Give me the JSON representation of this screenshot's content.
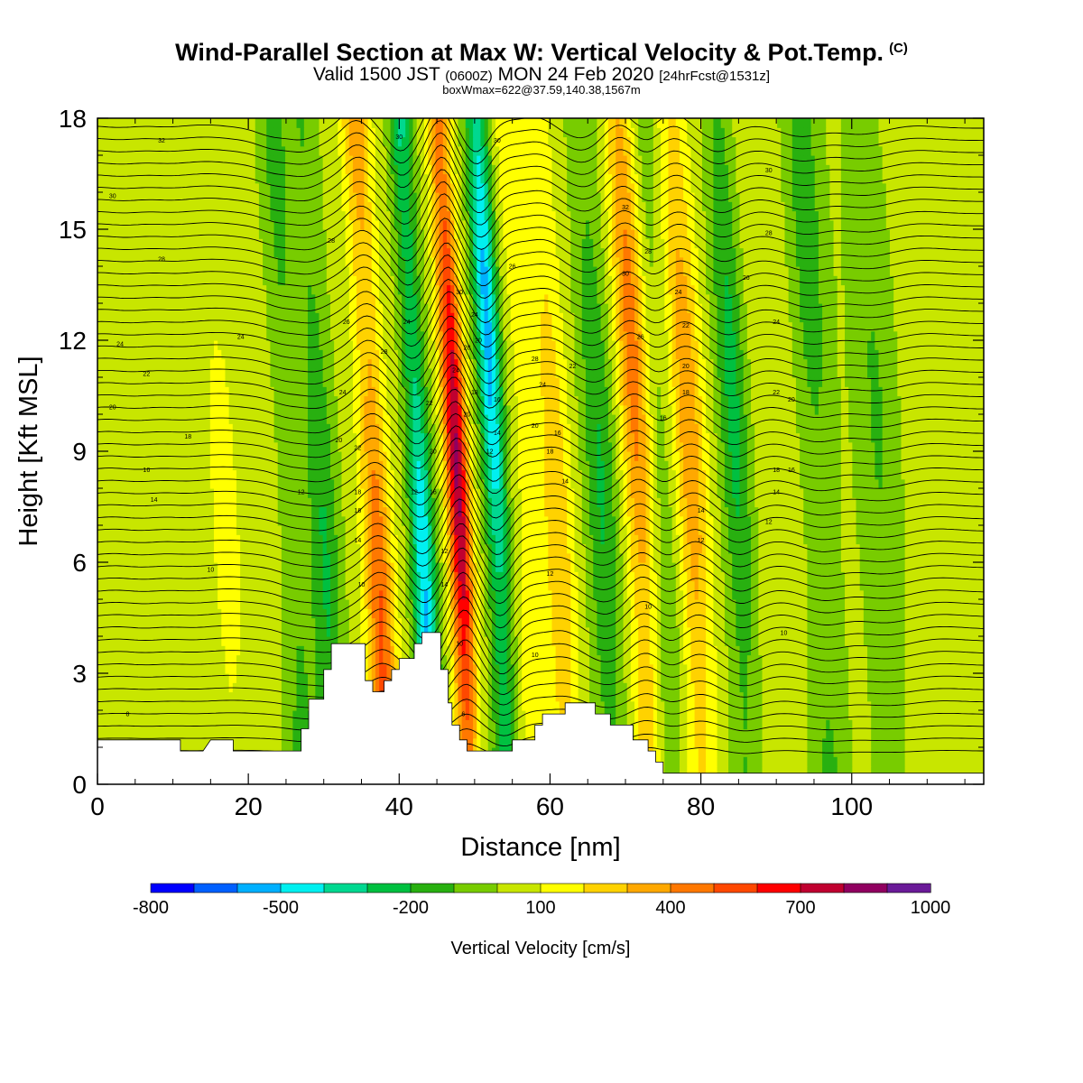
{
  "header": {
    "title": "Wind-Parallel Section at Max W: Vertical Velocity & Pot.Temp.",
    "copyright": "(C)",
    "valid_prefix": "Valid 1500 JST",
    "valid_utc": "(0600Z)",
    "valid_date": "MON 24 Feb 2020",
    "forecast": "[24hrFcst@1531z]",
    "box_info": "boxWmax=622@37.59,140.38,1567m"
  },
  "chart_data": {
    "type": "heatmap",
    "xlabel": "Distance [nm]",
    "ylabel": "Height [Kft MSL]",
    "xlim": [
      0,
      117.5
    ],
    "ylim": [
      0,
      18
    ],
    "x_ticks": [
      0,
      20,
      40,
      60,
      80,
      100
    ],
    "y_ticks": [
      0,
      3,
      6,
      9,
      12,
      15,
      18
    ],
    "colorbar": {
      "title": "Vertical Velocity [cm/s]",
      "levels": [
        -800,
        -700,
        -600,
        -500,
        -400,
        -300,
        -200,
        -100,
        0,
        100,
        200,
        300,
        400,
        500,
        600,
        700,
        800,
        900,
        1000
      ],
      "labels": [
        "-800",
        "-500",
        "-200",
        "100",
        "400",
        "700",
        "1000"
      ],
      "label_values": [
        -800,
        -500,
        -200,
        100,
        400,
        700,
        1000
      ],
      "colors": [
        "#0000ff",
        "#0060ff",
        "#00b0ff",
        "#00f0f0",
        "#00d890",
        "#00c040",
        "#28b010",
        "#78cc00",
        "#c8e600",
        "#ffff00",
        "#ffd200",
        "#ffa800",
        "#ff7800",
        "#ff4800",
        "#ff0000",
        "#c00030",
        "#900060",
        "#6a1a98"
      ]
    },
    "vertical_velocity_bands": [
      {
        "x": 3,
        "w": 2,
        "v": 50
      },
      {
        "x": 10,
        "w": 2,
        "v": 40
      },
      {
        "x": 18,
        "w": 3,
        "v": 80
      },
      {
        "x": 27,
        "w": 2,
        "v": -180
      },
      {
        "x": 31,
        "w": 2,
        "v": -250
      },
      {
        "x": 38,
        "w": 1.8,
        "v": 480
      },
      {
        "x": 44,
        "w": 1.6,
        "v": -550
      },
      {
        "x": 49,
        "w": 1.5,
        "v": 780
      },
      {
        "x": 54,
        "w": 1.6,
        "v": -580
      },
      {
        "x": 58,
        "w": 1.8,
        "v": 150
      },
      {
        "x": 62,
        "w": 2,
        "v": 250
      },
      {
        "x": 68,
        "w": 2.2,
        "v": -250
      },
      {
        "x": 73,
        "w": 2,
        "v": 420
      },
      {
        "x": 76,
        "w": 1.8,
        "v": -150
      },
      {
        "x": 80,
        "w": 2,
        "v": 350
      },
      {
        "x": 86,
        "w": 2,
        "v": -280
      },
      {
        "x": 91,
        "w": 2.5,
        "v": 60
      },
      {
        "x": 97,
        "w": 2.5,
        "v": -200
      },
      {
        "x": 105,
        "w": 3,
        "v": -150
      },
      {
        "x": 112,
        "w": 3,
        "v": 60
      }
    ],
    "terrain_kft": [
      [
        0,
        1.2
      ],
      [
        5,
        1.2
      ],
      [
        11,
        1.2
      ],
      [
        11,
        0.9
      ],
      [
        14,
        0.9
      ],
      [
        15,
        1.2
      ],
      [
        18,
        1.2
      ],
      [
        18,
        0.9
      ],
      [
        27,
        0.9
      ],
      [
        27,
        1.5
      ],
      [
        28,
        1.5
      ],
      [
        28,
        2.3
      ],
      [
        30,
        2.3
      ],
      [
        30,
        3.1
      ],
      [
        31,
        3.1
      ],
      [
        31,
        3.8
      ],
      [
        35.5,
        3.8
      ],
      [
        35.5,
        2.8
      ],
      [
        36.5,
        2.8
      ],
      [
        36.5,
        2.5
      ],
      [
        38,
        2.5
      ],
      [
        38,
        2.8
      ],
      [
        39,
        2.8
      ],
      [
        39,
        3.1
      ],
      [
        40,
        3.1
      ],
      [
        40,
        3.4
      ],
      [
        42,
        3.4
      ],
      [
        42,
        3.8
      ],
      [
        43,
        3.8
      ],
      [
        43,
        4.1
      ],
      [
        45.5,
        4.1
      ],
      [
        45.5,
        3.1
      ],
      [
        46.5,
        3.1
      ],
      [
        46.5,
        2.2
      ],
      [
        47,
        2.2
      ],
      [
        47,
        1.6
      ],
      [
        48,
        1.6
      ],
      [
        48,
        1.2
      ],
      [
        49,
        1.2
      ],
      [
        49,
        0.9
      ],
      [
        55,
        0.9
      ],
      [
        55,
        1.2
      ],
      [
        58,
        1.2
      ],
      [
        58,
        1.6
      ],
      [
        59,
        1.6
      ],
      [
        59,
        1.9
      ],
      [
        62,
        1.9
      ],
      [
        62,
        2.2
      ],
      [
        66,
        2.2
      ],
      [
        66,
        1.9
      ],
      [
        68,
        1.9
      ],
      [
        68,
        1.6
      ],
      [
        71,
        1.6
      ],
      [
        71,
        1.2
      ],
      [
        73,
        1.2
      ],
      [
        73,
        0.9
      ],
      [
        74,
        0.9
      ],
      [
        74,
        0.6
      ],
      [
        75,
        0.6
      ],
      [
        75,
        0.3
      ],
      [
        117.5,
        0.3
      ]
    ],
    "isentrope_labels": [
      {
        "x": 4,
        "y": 1.9,
        "t": "8"
      },
      {
        "x": 7.5,
        "y": 7.7,
        "t": "14"
      },
      {
        "x": 6.5,
        "y": 8.5,
        "t": "16"
      },
      {
        "x": 12,
        "y": 9.4,
        "t": "18"
      },
      {
        "x": 2,
        "y": 10.2,
        "t": "20"
      },
      {
        "x": 6.5,
        "y": 11.1,
        "t": "22"
      },
      {
        "x": 3,
        "y": 11.9,
        "t": "24"
      },
      {
        "x": 19,
        "y": 12.1,
        "t": "24"
      },
      {
        "x": 8.5,
        "y": 14.2,
        "t": "28"
      },
      {
        "x": 2,
        "y": 15.9,
        "t": "30"
      },
      {
        "x": 8.5,
        "y": 17.4,
        "t": "32"
      },
      {
        "x": 15,
        "y": 5.8,
        "t": "10"
      },
      {
        "x": 27,
        "y": 7.9,
        "t": "12"
      },
      {
        "x": 35,
        "y": 5.4,
        "t": "10"
      },
      {
        "x": 34.5,
        "y": 6.6,
        "t": "14"
      },
      {
        "x": 34.5,
        "y": 7.4,
        "t": "16"
      },
      {
        "x": 34.5,
        "y": 7.9,
        "t": "18"
      },
      {
        "x": 32,
        "y": 9.3,
        "t": "20"
      },
      {
        "x": 34.5,
        "y": 9.1,
        "t": "22"
      },
      {
        "x": 32.5,
        "y": 10.6,
        "t": "24"
      },
      {
        "x": 33,
        "y": 12.5,
        "t": "26"
      },
      {
        "x": 31,
        "y": 14.7,
        "t": "28"
      },
      {
        "x": 38,
        "y": 11.7,
        "t": "28"
      },
      {
        "x": 41,
        "y": 12.5,
        "t": "24"
      },
      {
        "x": 40,
        "y": 17.5,
        "t": "30"
      },
      {
        "x": 42,
        "y": 7.9,
        "t": "12"
      },
      {
        "x": 44,
        "y": 10.3,
        "t": "22"
      },
      {
        "x": 44.5,
        "y": 9.0,
        "t": "20"
      },
      {
        "x": 44.5,
        "y": 7.9,
        "t": "16"
      },
      {
        "x": 46,
        "y": 6.3,
        "t": "12"
      },
      {
        "x": 46,
        "y": 5.4,
        "t": "14"
      },
      {
        "x": 48,
        "y": 3.8,
        "t": "10"
      },
      {
        "x": 48.5,
        "y": 1.9,
        "t": "6"
      },
      {
        "x": 47.5,
        "y": 11.2,
        "t": "24"
      },
      {
        "x": 48,
        "y": 13.3,
        "t": "30"
      },
      {
        "x": 49,
        "y": 11.8,
        "t": "28"
      },
      {
        "x": 49,
        "y": 10.0,
        "t": "20"
      },
      {
        "x": 50,
        "y": 12.7,
        "t": "24"
      },
      {
        "x": 50,
        "y": 10.6,
        "t": "18"
      },
      {
        "x": 50.5,
        "y": 12.0,
        "t": "20"
      },
      {
        "x": 52,
        "y": 9.0,
        "t": "12"
      },
      {
        "x": 53,
        "y": 9.5,
        "t": "14"
      },
      {
        "x": 53,
        "y": 10.4,
        "t": "16"
      },
      {
        "x": 55,
        "y": 14.0,
        "t": "26"
      },
      {
        "x": 53,
        "y": 17.4,
        "t": "30"
      },
      {
        "x": 58,
        "y": 11.5,
        "t": "28"
      },
      {
        "x": 59,
        "y": 10.8,
        "t": "24"
      },
      {
        "x": 58,
        "y": 9.7,
        "t": "20"
      },
      {
        "x": 60,
        "y": 9.0,
        "t": "18"
      },
      {
        "x": 61,
        "y": 9.5,
        "t": "16"
      },
      {
        "x": 62,
        "y": 8.2,
        "t": "14"
      },
      {
        "x": 60,
        "y": 5.7,
        "t": "12"
      },
      {
        "x": 58,
        "y": 3.5,
        "t": "10"
      },
      {
        "x": 63,
        "y": 11.3,
        "t": "22"
      },
      {
        "x": 70,
        "y": 15.6,
        "t": "32"
      },
      {
        "x": 70,
        "y": 13.8,
        "t": "30"
      },
      {
        "x": 73,
        "y": 14.4,
        "t": "28"
      },
      {
        "x": 72,
        "y": 12.1,
        "t": "26"
      },
      {
        "x": 77,
        "y": 13.3,
        "t": "24"
      },
      {
        "x": 78,
        "y": 12.4,
        "t": "22"
      },
      {
        "x": 78,
        "y": 11.3,
        "t": "20"
      },
      {
        "x": 78,
        "y": 10.6,
        "t": "18"
      },
      {
        "x": 75,
        "y": 9.9,
        "t": "16"
      },
      {
        "x": 80,
        "y": 7.4,
        "t": "14"
      },
      {
        "x": 80,
        "y": 6.6,
        "t": "12"
      },
      {
        "x": 73,
        "y": 4.8,
        "t": "10"
      },
      {
        "x": 89,
        "y": 16.6,
        "t": "30"
      },
      {
        "x": 89,
        "y": 14.9,
        "t": "28"
      },
      {
        "x": 86,
        "y": 13.7,
        "t": "26"
      },
      {
        "x": 90,
        "y": 12.5,
        "t": "24"
      },
      {
        "x": 90,
        "y": 10.6,
        "t": "22"
      },
      {
        "x": 92,
        "y": 10.4,
        "t": "20"
      },
      {
        "x": 90,
        "y": 8.5,
        "t": "18"
      },
      {
        "x": 92,
        "y": 8.5,
        "t": "16"
      },
      {
        "x": 90,
        "y": 7.9,
        "t": "14"
      },
      {
        "x": 89,
        "y": 7.1,
        "t": "12"
      },
      {
        "x": 91,
        "y": 4.1,
        "t": "10"
      }
    ]
  }
}
